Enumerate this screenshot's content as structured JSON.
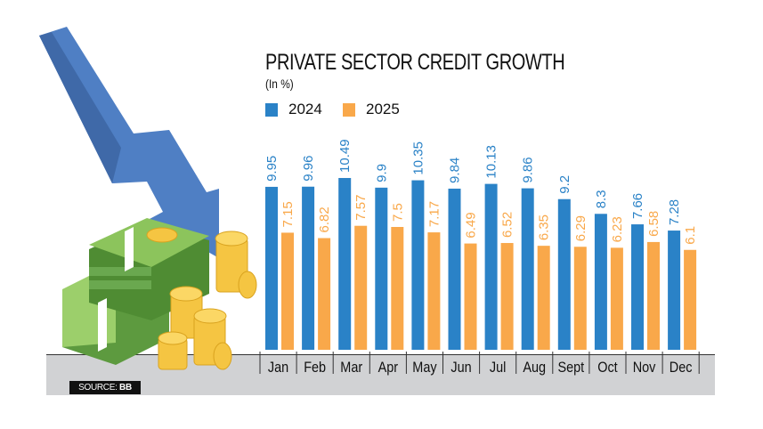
{
  "chart_data": {
    "type": "bar",
    "title": "PRIVATE SECTOR CREDIT GROWTH",
    "subtitle": "(In %)",
    "categories": [
      "Jan",
      "Feb",
      "Mar",
      "Apr",
      "May",
      "Jun",
      "Jul",
      "Aug",
      "Sept",
      "Oct",
      "Nov",
      "Dec"
    ],
    "series": [
      {
        "name": "2024",
        "color": "#2a82c7",
        "values": [
          9.95,
          9.96,
          10.49,
          9.9,
          10.35,
          9.84,
          10.13,
          9.86,
          9.2,
          8.3,
          7.66,
          7.28
        ],
        "labels": [
          "9.95",
          "9.96",
          "10.49",
          "9.9",
          "10.35",
          "9.84",
          "10.13",
          "9.86",
          "9.2",
          "8.3",
          "7.66",
          "7.28"
        ]
      },
      {
        "name": "2025",
        "color": "#f9a84a",
        "values": [
          7.15,
          6.82,
          7.57,
          7.5,
          7.17,
          6.49,
          6.52,
          6.35,
          6.29,
          6.23,
          6.58,
          6.1
        ],
        "labels": [
          "7.15",
          "6.82",
          "7.57",
          "7.5",
          "7.17",
          "6.49",
          "6.52",
          "6.35",
          "6.29",
          "6.23",
          "6.58",
          "6.1"
        ]
      }
    ],
    "ylim": [
      0,
      11
    ],
    "grid": false,
    "legend_position": "top-left"
  },
  "source": {
    "label": "SOURCE:",
    "value": "BB"
  },
  "illustration": {
    "arrow_color": "#4f7fc4",
    "money_color": "#6aa84f",
    "coin_color": "#f5c542"
  }
}
